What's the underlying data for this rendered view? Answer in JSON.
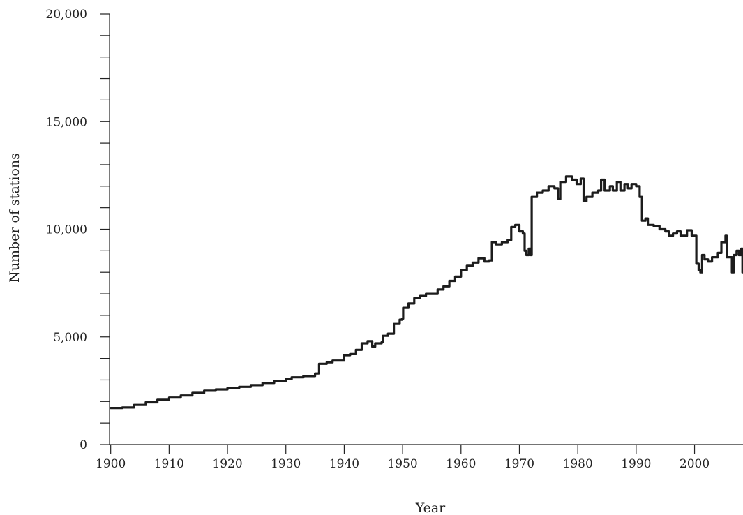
{
  "chart_data": {
    "type": "line",
    "title": "",
    "xlabel": "Year",
    "ylabel": "Number of stations",
    "xlim": [
      1899.8,
      2008.3
    ],
    "ylim": [
      0,
      20000
    ],
    "grid": false,
    "x_ticks": [
      1900,
      1910,
      1920,
      1930,
      1940,
      1950,
      1960,
      1970,
      1980,
      1990,
      2000
    ],
    "x_tick_labels": [
      "1900",
      "1910",
      "1920",
      "1930",
      "1940",
      "1950",
      "1960",
      "1970",
      "1980",
      "1990",
      "2000"
    ],
    "y_major_ticks": [
      0,
      5000,
      10000,
      15000,
      20000
    ],
    "y_tick_labels": [
      "0",
      "5,000",
      "10,000",
      "15,000",
      "20,000"
    ],
    "y_minor_ticks": [
      1000,
      2000,
      3000,
      4000,
      6000,
      7000,
      8000,
      9000,
      11000,
      12000,
      13000,
      14000,
      16000,
      17000,
      18000,
      19000
    ],
    "series": [
      {
        "points": [
          [
            1900,
            1700
          ],
          [
            1902,
            1720
          ],
          [
            1904,
            1840
          ],
          [
            1906,
            1960
          ],
          [
            1908,
            2080
          ],
          [
            1910,
            2180
          ],
          [
            1912,
            2280
          ],
          [
            1914,
            2400
          ],
          [
            1916,
            2500
          ],
          [
            1918,
            2560
          ],
          [
            1920,
            2620
          ],
          [
            1922,
            2680
          ],
          [
            1924,
            2760
          ],
          [
            1926,
            2860
          ],
          [
            1928,
            2940
          ],
          [
            1930,
            3040
          ],
          [
            1931,
            3120
          ],
          [
            1933,
            3180
          ],
          [
            1935,
            3300
          ],
          [
            1935.6,
            3310
          ],
          [
            1935.7,
            3750
          ],
          [
            1937,
            3820
          ],
          [
            1938,
            3900
          ],
          [
            1940,
            4150
          ],
          [
            1941,
            4200
          ],
          [
            1942,
            4400
          ],
          [
            1943,
            4700
          ],
          [
            1944,
            4800
          ],
          [
            1944.8,
            4550
          ],
          [
            1945.3,
            4700
          ],
          [
            1946.4,
            4750
          ],
          [
            1946.6,
            5050
          ],
          [
            1947.5,
            5150
          ],
          [
            1948.5,
            5600
          ],
          [
            1949.5,
            5800
          ],
          [
            1949.9,
            5850
          ],
          [
            1950.1,
            6350
          ],
          [
            1951,
            6550
          ],
          [
            1952,
            6800
          ],
          [
            1953,
            6900
          ],
          [
            1954,
            7000
          ],
          [
            1955,
            7000
          ],
          [
            1956,
            7200
          ],
          [
            1957,
            7350
          ],
          [
            1958,
            7600
          ],
          [
            1959,
            7800
          ],
          [
            1960,
            8100
          ],
          [
            1961,
            8300
          ],
          [
            1962,
            8450
          ],
          [
            1963,
            8650
          ],
          [
            1964,
            8500
          ],
          [
            1964.8,
            8550
          ],
          [
            1965.3,
            9400
          ],
          [
            1966,
            9300
          ],
          [
            1967,
            9400
          ],
          [
            1968,
            9500
          ],
          [
            1968.6,
            10100
          ],
          [
            1969.3,
            10200
          ],
          [
            1970,
            9900
          ],
          [
            1970.6,
            9800
          ],
          [
            1970.9,
            9000
          ],
          [
            1971.2,
            8800
          ],
          [
            1971.6,
            9100
          ],
          [
            1971.9,
            8800
          ],
          [
            1972.1,
            11500
          ],
          [
            1973,
            11700
          ],
          [
            1974,
            11800
          ],
          [
            1975,
            12000
          ],
          [
            1976,
            11900
          ],
          [
            1976.6,
            11400
          ],
          [
            1977,
            12200
          ],
          [
            1978,
            12450
          ],
          [
            1979,
            12300
          ],
          [
            1979.8,
            12100
          ],
          [
            1980.5,
            12350
          ],
          [
            1981,
            11300
          ],
          [
            1981.5,
            11500
          ],
          [
            1982.5,
            11700
          ],
          [
            1983.5,
            11800
          ],
          [
            1984,
            12300
          ],
          [
            1984.6,
            11800
          ],
          [
            1985.5,
            12000
          ],
          [
            1986,
            11800
          ],
          [
            1986.7,
            12200
          ],
          [
            1987.3,
            11800
          ],
          [
            1988,
            12100
          ],
          [
            1988.6,
            11900
          ],
          [
            1989.2,
            12100
          ],
          [
            1990,
            12000
          ],
          [
            1990.6,
            11500
          ],
          [
            1991,
            10400
          ],
          [
            1991.6,
            10500
          ],
          [
            1992,
            10200
          ],
          [
            1993,
            10150
          ],
          [
            1994,
            10000
          ],
          [
            1995,
            9900
          ],
          [
            1995.6,
            9700
          ],
          [
            1996.3,
            9800
          ],
          [
            1997,
            9900
          ],
          [
            1997.6,
            9700
          ],
          [
            1998.3,
            9700
          ],
          [
            1998.7,
            9950
          ],
          [
            1999.5,
            9700
          ],
          [
            2000.1,
            9700
          ],
          [
            2000.3,
            8400
          ],
          [
            2000.7,
            8100
          ],
          [
            2001,
            8000
          ],
          [
            2001.3,
            8800
          ],
          [
            2001.7,
            8600
          ],
          [
            2002.3,
            8500
          ],
          [
            2003,
            8700
          ],
          [
            2004,
            8900
          ],
          [
            2004.6,
            9400
          ],
          [
            2005.3,
            9700
          ],
          [
            2005.5,
            8700
          ],
          [
            2006.2,
            8700
          ],
          [
            2006.4,
            8000
          ],
          [
            2006.7,
            8800
          ],
          [
            2007.2,
            9000
          ],
          [
            2007.6,
            8800
          ],
          [
            2008,
            9100
          ],
          [
            2008.2,
            8000
          ]
        ]
      }
    ]
  }
}
